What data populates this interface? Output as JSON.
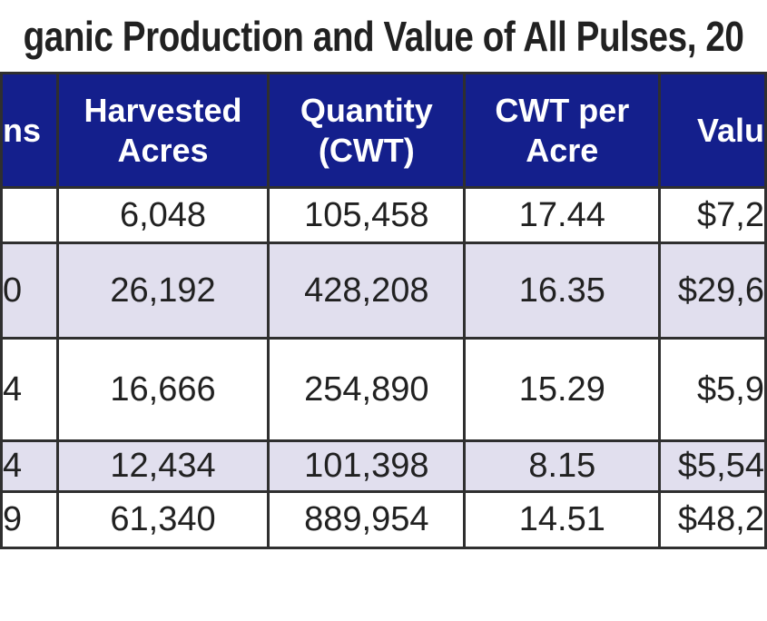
{
  "title": "ganic Production and Value of All Pulses, 20",
  "colors": {
    "header_bg": "#141f8c",
    "header_text": "#ffffff",
    "row_bg": "#ffffff",
    "row_alt_bg": "#e1dfee",
    "border": "#2f2f2f",
    "text": "#212121"
  },
  "chart_data": {
    "type": "table",
    "title": "ganic Production and Value of All Pulses, 20",
    "columns": [
      "ns",
      "Harvested Acres",
      "Quantity (CWT)",
      "CWT per Acre",
      "Valu"
    ],
    "rows": [
      [
        "",
        "6,048",
        "105,458",
        "17.44",
        "$7,2"
      ],
      [
        "0",
        "26,192",
        "428,208",
        "16.35",
        "$29,6"
      ],
      [
        "4",
        "16,666",
        "254,890",
        "15.29",
        "$5,9"
      ],
      [
        "4",
        "12,434",
        "101,398",
        "8.15",
        "$5,54"
      ],
      [
        "9",
        "61,340",
        "889,954",
        "14.51",
        "$48,2"
      ]
    ],
    "layout_hints": {
      "cropped_edges": "left and right columns and title are partially cut off by the screenshot crop",
      "zebra_striping": "rows 2 and 4 shaded lavender",
      "grid": "on"
    }
  }
}
